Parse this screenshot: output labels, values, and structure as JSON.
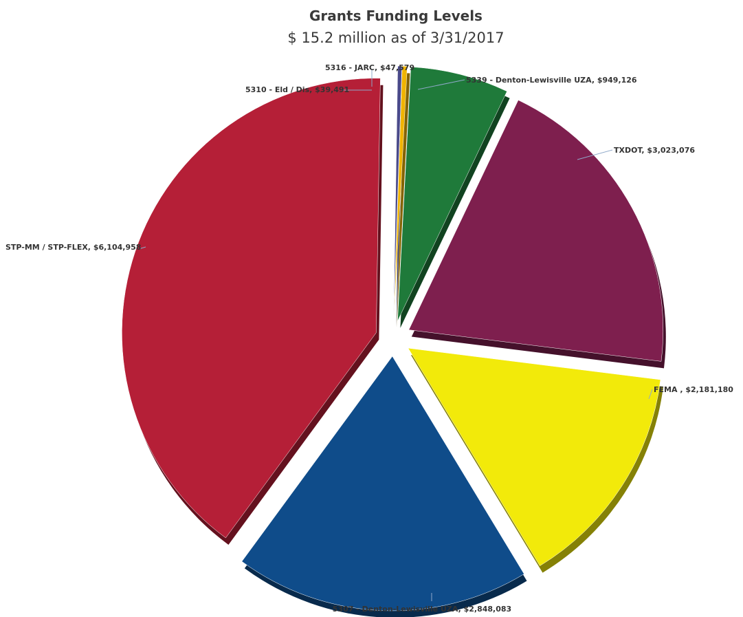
{
  "chart_data": {
    "type": "pie",
    "title": "Grants Funding Levels",
    "subtitle": "$ 15.2 million as of 3/31/2017",
    "slices": [
      {
        "name": "5339 - Denton-Lewisville UZA",
        "label": "5339 - Denton-Lewisville UZA, $949,126",
        "value": 949126,
        "color": "#1f7a3a"
      },
      {
        "name": "TXDOT",
        "label": "TXDOT, $3,023,076",
        "value": 3023076,
        "color": "#7e1f4e"
      },
      {
        "name": "FEMA",
        "label": "FEMA , $2,181,180",
        "value": 2181180,
        "color": "#f2ea0a"
      },
      {
        "name": "5307 - Denton-Lewisville UZA",
        "label": "5307 - Denton-Lewisville UZA, $2,848,083",
        "value": 2848083,
        "color": "#0f4c8a"
      },
      {
        "name": "STP-MM / STP-FLEX",
        "label": "STP-MM / STP-FLEX, $6,104,958",
        "value": 6104958,
        "color": "#b51f37"
      },
      {
        "name": "5310 - Eld / Dis",
        "label": "5310 - Eld / Dis, $39,491",
        "value": 39491,
        "color": "#4a4a8a"
      },
      {
        "name": "5316 - JARC",
        "label": "5316 - JARC, $47,579",
        "value": 47579,
        "color": "#f0b400"
      }
    ]
  }
}
